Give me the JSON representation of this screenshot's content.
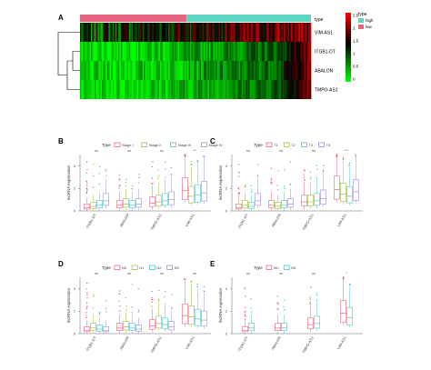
{
  "figure": {
    "panel_labels": [
      "A",
      "B",
      "C",
      "D",
      "E"
    ]
  },
  "chart_data": [
    {
      "panel": "A",
      "type": "heatmap",
      "rows": [
        "VIM-AS1",
        "ITGB1-DT",
        "ABALON",
        "TMPO-AS1"
      ],
      "annotation": {
        "title": "type",
        "groups": [
          "high",
          "low"
        ],
        "colors": {
          "high": "#5fd4c0",
          "low": "#e5657f"
        },
        "low_fraction": 0.46
      },
      "colorbar": {
        "ticks": [
          "2.5",
          "2",
          "1.5",
          "1",
          "0.5",
          "0"
        ],
        "colors": [
          "#ff0000",
          "#000000",
          "#00ff00"
        ]
      }
    },
    {
      "panel": "B",
      "type": "box",
      "legend_title": "Type",
      "series": [
        "Stage I",
        "Stage II",
        "Stage III",
        "Stage IV"
      ],
      "colors": [
        "#e8677e",
        "#9fbf3a",
        "#4cc4cf",
        "#a08ddd"
      ],
      "categories": [
        "ITGB1-DT",
        "ABALON",
        "TMPO-AS1",
        "VIM-AS1"
      ],
      "significance": [
        "ns",
        "ns",
        "ns",
        "**"
      ],
      "ylabel": "lncRNA expression",
      "yticks": [
        "0",
        "2",
        "4"
      ],
      "ylim": [
        0,
        5
      ],
      "medians": [
        [
          0.3,
          0.4,
          0.5,
          0.9
        ],
        [
          0.5,
          0.6,
          0.5,
          0.6
        ],
        [
          0.7,
          0.8,
          0.9,
          1.0
        ],
        [
          1.8,
          1.3,
          1.4,
          1.6
        ]
      ]
    },
    {
      "panel": "C",
      "type": "box",
      "legend_title": "Type",
      "series": [
        "T1",
        "T2",
        "T3",
        "T4"
      ],
      "colors": [
        "#e8677e",
        "#9fbf3a",
        "#4cc4cf",
        "#a08ddd"
      ],
      "categories": [
        "ITGB1-DT",
        "ABALON",
        "TMPO-AS1",
        "VIM-AS1"
      ],
      "significance": [
        "ns",
        "ns",
        "ns",
        "***"
      ],
      "ylabel": "lncRNA expression",
      "yticks": [
        "0",
        "2",
        "4"
      ],
      "ylim": [
        0,
        5
      ],
      "medians": [
        [
          0.3,
          0.5,
          0.4,
          0.9
        ],
        [
          0.5,
          0.4,
          0.5,
          0.6
        ],
        [
          0.8,
          0.8,
          0.9,
          1.1
        ],
        [
          1.9,
          1.5,
          1.3,
          1.7
        ]
      ]
    },
    {
      "panel": "D",
      "type": "box",
      "legend_title": "Type",
      "series": [
        "N0",
        "N1",
        "N2",
        "N3"
      ],
      "colors": [
        "#e8677e",
        "#9fbf3a",
        "#4cc4cf",
        "#a08ddd"
      ],
      "categories": [
        "ITGB1-DT",
        "ABALON",
        "TMPO-AS1",
        "VIM-AS1"
      ],
      "significance": [
        "ns",
        "ns",
        "ns",
        "ns"
      ],
      "ylabel": "lncRNA expression",
      "yticks": [
        "0",
        "2",
        "4"
      ],
      "ylim": [
        0,
        5
      ],
      "medians": [
        [
          0.3,
          0.5,
          0.4,
          0.3
        ],
        [
          0.5,
          0.6,
          0.5,
          0.4
        ],
        [
          0.7,
          0.9,
          0.8,
          0.6
        ],
        [
          1.6,
          1.5,
          1.3,
          1.2
        ]
      ]
    },
    {
      "panel": "E",
      "type": "box",
      "legend_title": "Type",
      "series": [
        "M0",
        "M1"
      ],
      "colors": [
        "#e8677e",
        "#4cc4cf"
      ],
      "categories": [
        "ITGB1-DT",
        "ABALON",
        "TMPO-AS1",
        "VIM-AS1"
      ],
      "significance": [
        "ns",
        "ns",
        "ns",
        "*"
      ],
      "ylabel": "lncRNA expression",
      "yticks": [
        "0",
        "2",
        "4"
      ],
      "ylim": [
        0,
        5
      ],
      "medians": [
        [
          0.3,
          0.5
        ],
        [
          0.5,
          0.5
        ],
        [
          0.8,
          0.9
        ],
        [
          1.8,
          1.4
        ]
      ]
    }
  ]
}
